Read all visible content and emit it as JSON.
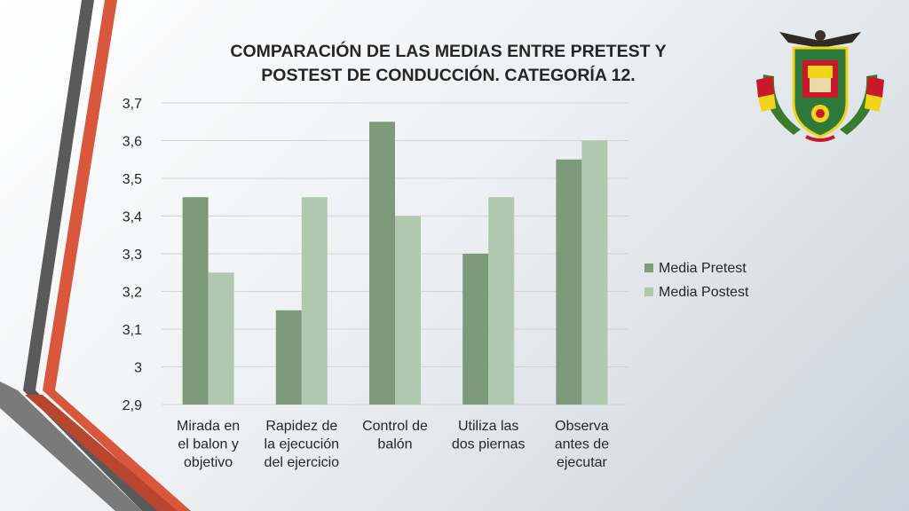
{
  "chart_data": {
    "type": "bar",
    "title_lines": [
      "COMPARACIÓN DE LAS MEDIAS ENTRE PRETEST Y",
      "POSTEST DE CONDUCCIÓN. CATEGORÍA 12."
    ],
    "categories": [
      [
        "Mirada en",
        "el balon y",
        "objetivo"
      ],
      [
        "Rapidez de",
        "la ejecución",
        "del ejercicio"
      ],
      [
        "Control de",
        "balón"
      ],
      [
        "Utiliza las",
        "dos piernas"
      ],
      [
        "Observa",
        "antes de",
        "ejecutar"
      ]
    ],
    "series": [
      {
        "name": "Media Pretest",
        "color": "#7d9b7a",
        "values": [
          3.45,
          3.15,
          3.65,
          3.3,
          3.55
        ]
      },
      {
        "name": "Media Postest",
        "color": "#b0c8b0",
        "values": [
          3.25,
          3.45,
          3.4,
          3.45,
          3.6
        ]
      }
    ],
    "y_ticks": [
      "2,9",
      "3",
      "3,1",
      "3,2",
      "3,3",
      "3,4",
      "3,5",
      "3,6",
      "3,7"
    ],
    "ylim": [
      2.9,
      3.7
    ],
    "grid": true,
    "legend_position": "right"
  },
  "emblem": {
    "icon": "coat-of-arms-icon",
    "text": ""
  }
}
